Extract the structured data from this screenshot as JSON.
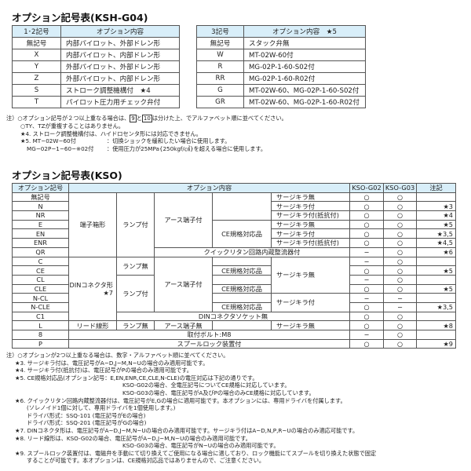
{
  "ksh": {
    "title": "オプション記号表(KSH-G04)",
    "table12": {
      "headers": [
        "1･2記号",
        "オプション内容"
      ],
      "rows": [
        [
          "無記号",
          "内部パイロット、外部ドレン形"
        ],
        [
          "X",
          "内部パイロット、内部ドレン形"
        ],
        [
          "Y",
          "外部パイロット、外部ドレン形"
        ],
        [
          "Z",
          "外部パイロット、内部ドレン形"
        ],
        [
          "S",
          "ストローク調整機構付　★4"
        ],
        [
          "T",
          "パイロット圧力用チェック弁付"
        ]
      ]
    },
    "table3": {
      "headers": [
        "3記号",
        "オプション内容　★5"
      ],
      "rows": [
        [
          "無記号",
          "スタック弁無"
        ],
        [
          "W",
          "MT-02W-60付"
        ],
        [
          "R",
          "MG-02P-1-60-S02付"
        ],
        [
          "RR",
          "MG-02P-1-60-R02付"
        ],
        [
          "G",
          "MT-02W-60、MG-02P-1-60-S02付"
        ],
        [
          "GR",
          "MT-02W-60、MG-02P-1-60-R02付"
        ]
      ]
    },
    "notes": {
      "n1a": "注）○オプション記号が２つ以上重なる場合は、",
      "box9": "9",
      "n1b": "と",
      "box10": "10",
      "n1c": "は分けた上、でアルファベット順に並べてください。",
      "n2": "○TY、TZが重複することはありません。",
      "n3": "★4. ストローク調整機構付は、ハイドロセンタ形には対応できません。",
      "n4a": "★5. MT−02W−60付",
      "n4b": "：切換ショックを緩和したい場合に使用します。",
      "n5a": "MG−02P−1−60−※02付",
      "n5b": "：使用圧力が25MPa{250kgf/㎠}を超える場合に使用します。"
    }
  },
  "kso": {
    "title": "オプション記号表(KSO)",
    "headers": [
      "オプション記号",
      "オプション内容",
      "KSO-G02",
      "KSO-G03",
      "注記"
    ],
    "labels": {
      "terminal_box": "端子箱形",
      "din": "DINコネクタ形",
      "din_star": "★7",
      "lead": "リード線形",
      "lamp_on": "ランプ付",
      "lamp_off": "ランプ無",
      "earth_on": "アース端子付",
      "earth_off": "アース端子無",
      "ce": "CE規格対応品",
      "surge_off": "サージキラ無",
      "surge_on": "サージキラ付",
      "surge_res": "サージキラ付(抵抗付)",
      "quick": "クイックリタン回路内蔵整流器付",
      "socketless": "DINコネクタソケット無",
      "bolt": "取付ボルト:M8",
      "spool": "スプールロック装置付"
    },
    "rows": [
      {
        "code": "無記号",
        "g02": "○",
        "g03": "○",
        "note": ""
      },
      {
        "code": "N",
        "g02": "○",
        "g03": "○",
        "note": "★3"
      },
      {
        "code": "NR",
        "g02": "○",
        "g03": "○",
        "note": "★4"
      },
      {
        "code": "E",
        "g02": "○",
        "g03": "○",
        "note": "★5"
      },
      {
        "code": "EN",
        "g02": "○",
        "g03": "○",
        "note": "★3,5"
      },
      {
        "code": "ENR",
        "g02": "○",
        "g03": "○",
        "note": "★4,5"
      },
      {
        "code": "QR",
        "g02": "−",
        "g03": "○",
        "note": "★6"
      },
      {
        "code": "C",
        "g02": "−",
        "g03": "○",
        "note": ""
      },
      {
        "code": "CE",
        "g02": "○",
        "g03": "○",
        "note": "★5"
      },
      {
        "code": "CL",
        "g02": "−",
        "g03": "○",
        "note": ""
      },
      {
        "code": "CLE",
        "g02": "○",
        "g03": "○",
        "note": "★5"
      },
      {
        "code": "N-CL",
        "g02": "−",
        "g03": "−",
        "note": ""
      },
      {
        "code": "N-CLE",
        "g02": "○",
        "g03": "−",
        "note": "★3,5"
      },
      {
        "code": "C1",
        "g02": "○",
        "g03": "○",
        "note": ""
      },
      {
        "code": "L",
        "g02": "○",
        "g03": "○",
        "note": "★8"
      },
      {
        "code": "8",
        "g02": "−",
        "g03": "○",
        "note": ""
      },
      {
        "code": "P",
        "g02": "○",
        "g03": "○",
        "note": "★9"
      }
    ],
    "notes": [
      {
        "text": "注）○オプションが2つ以上重なる場合は、数字・アルファベット順に並べてください。",
        "indent": 0
      },
      {
        "text": "★3. サージキラ付は、電圧記号がA~D,J~M,N~Uの場合のみ適用可能です。",
        "indent": 1
      },
      {
        "text": "★4. サージキラ付(抵抗付)は、電圧記号がPの場合のみ適用可能です。",
        "indent": 1
      },
      {
        "text": "★5. CE規格対応品(オプション記号：E,EN,ENR,CE,CLE,N-CLE)の電圧対応は下記の通りです。",
        "indent": 1
      },
      {
        "text": "KSO-G02の場合、全電圧記号についてCE規格に対応しています。",
        "indent": 4
      },
      {
        "text": "KSO-G03の場合、電圧記号がA及びPの場合のみCE規格に対応しています。",
        "indent": 4
      },
      {
        "text": "★6. クイックリタン回路内蔵整流器付は、電圧記号がE,Gの場合に適用可能です。本オプションには、専用ドライバを付属します。",
        "indent": 1
      },
      {
        "text": "(ソレノイド1個に対して、専用ドライバを1個使用します。)",
        "indent": 3
      },
      {
        "text": "ドライバ形式：SSQ-101 (電圧記号がEの場合)",
        "indent": 3
      },
      {
        "text": "ドライバ形式：SSQ-201 (電圧記号がGの場合)",
        "indent": 3
      },
      {
        "text": "★7. DINコネクタ形は、電圧記号がA~D,J~M,N~Uの場合のみ適用可能です。サージキラ付はA~D,N,P,R~Uの場合のみ適応可能です。",
        "indent": 1
      },
      {
        "text": "★8. リード線形は、KSO-G02の場合、電圧記号がA~D,J~M,N~Uの場合のみ適用可能です。",
        "indent": 1
      },
      {
        "text": "KSO-G03の場合、電圧記号がN~Uの場合のみ適用可能です。",
        "indent": 4
      },
      {
        "text": "★9. スプールロック装置付は、電磁弁を手動にて切り換えてご使用になる場合に適しており、ロック機能にてスプールを切り換えた状態で固定",
        "indent": 1
      },
      {
        "text": "することが可能です。本オプションは、CE規格対応品ではありませんので、ご注意ください。",
        "indent": 3
      }
    ]
  }
}
